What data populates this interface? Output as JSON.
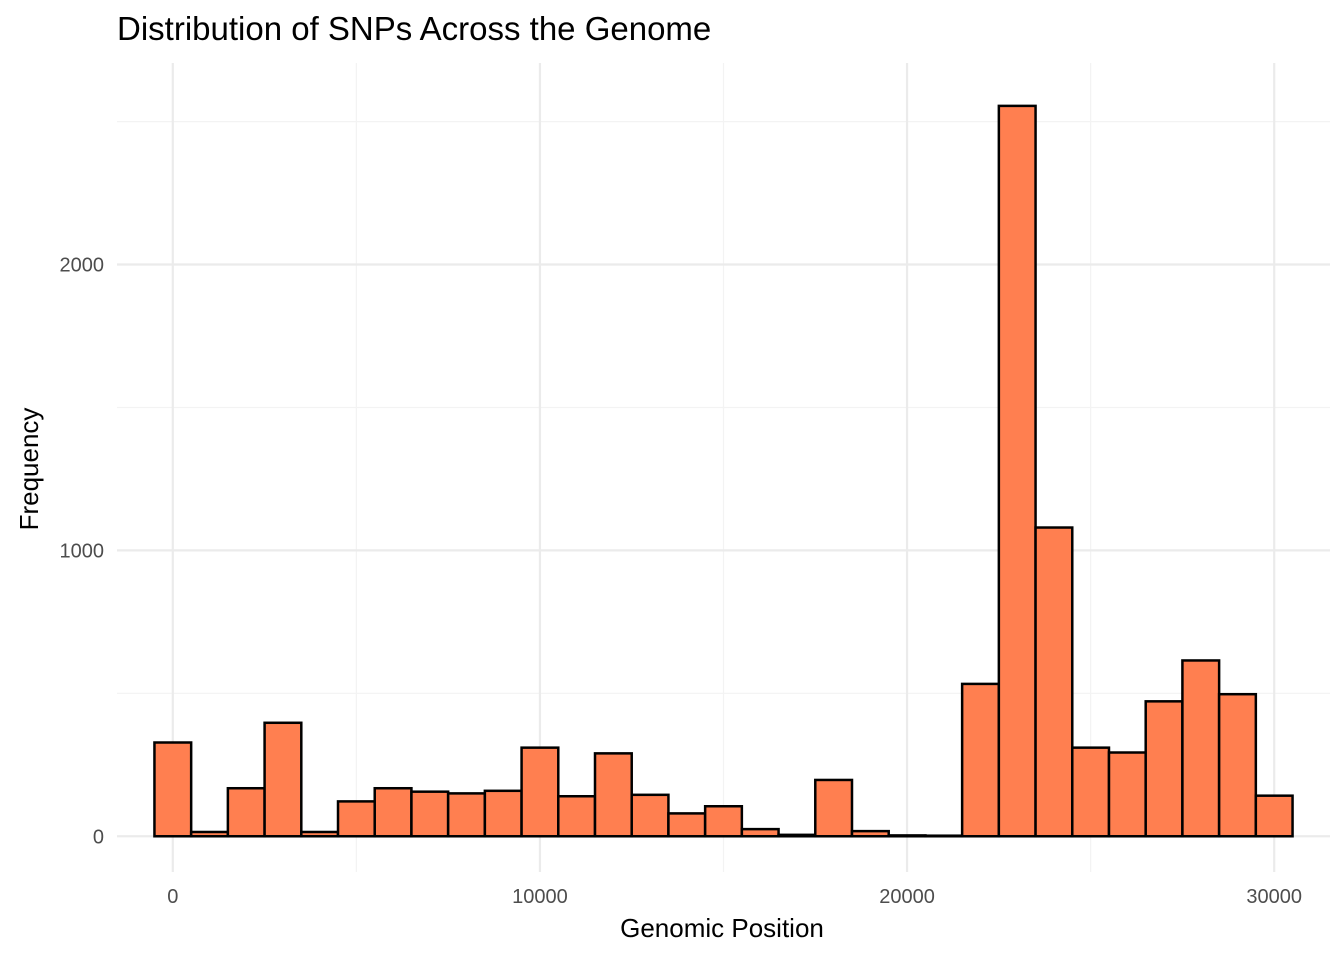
{
  "chart_data": {
    "type": "bar",
    "title": "Distribution of SNPs Across the Genome",
    "xlabel": "Genomic Position",
    "ylabel": "Frequency",
    "xlim": [
      -1520,
      31520
    ],
    "ylim": [
      -125,
      2705
    ],
    "x_ticks": [
      0,
      10000,
      20000,
      30000
    ],
    "y_ticks": [
      0,
      1000,
      2000
    ],
    "x_tick_labels": [
      "0",
      "10000",
      "20000",
      "30000"
    ],
    "y_tick_labels": [
      "0",
      "1000",
      "2000"
    ],
    "grid": true,
    "bin_width": 1000,
    "bin_centers": [
      0,
      1000,
      2000,
      3000,
      4000,
      5000,
      6000,
      7000,
      8000,
      9000,
      10000,
      11000,
      12000,
      13000,
      14000,
      15000,
      16000,
      17000,
      18000,
      19000,
      20000,
      21000,
      22000,
      23000,
      24000,
      25000,
      26000,
      27000,
      28000,
      29000,
      30000
    ],
    "values": [
      328,
      15,
      168,
      397,
      15,
      122,
      168,
      156,
      150,
      159,
      310,
      140,
      290,
      145,
      80,
      105,
      25,
      5,
      197,
      18,
      3,
      2,
      533,
      2555,
      1080,
      310,
      293,
      472,
      615,
      497,
      142
    ],
    "bar_color": "#FF7F50"
  }
}
